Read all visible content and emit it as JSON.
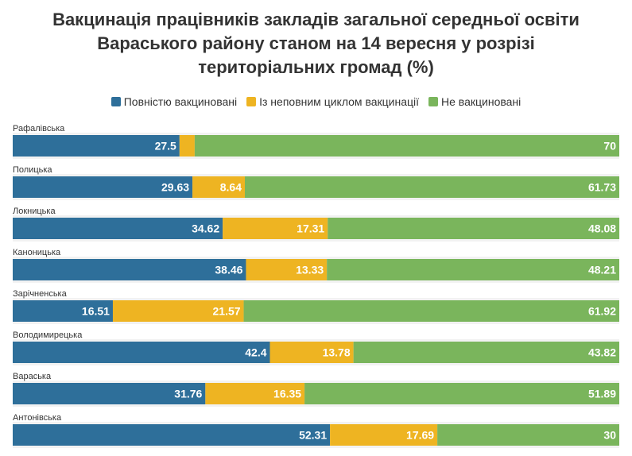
{
  "title_lines": [
    "Вакцинація працівників закладів загальної середньої освіти",
    "Вараського району станом на 14 вересня у розрізі",
    "територіальних громад (%)"
  ],
  "legend": [
    {
      "label": "Повністю вакциновані",
      "color": "#2e6f9a"
    },
    {
      "label": "Із неповним циклом вакцинації",
      "color": "#eeb422"
    },
    {
      "label": "Не вакциновані",
      "color": "#7ab55c"
    }
  ],
  "chart_data": {
    "type": "bar",
    "stacked": true,
    "orientation": "horizontal",
    "categories": [
      "Рафалівська",
      "Полицька",
      "Локницька",
      "Каноницька",
      "Зарічненська",
      "Володимирецька",
      "Вараська",
      "Антонівська"
    ],
    "series": [
      {
        "name": "Повністю вакциновані",
        "color": "#2e6f9a",
        "values": [
          27.5,
          29.63,
          34.62,
          38.46,
          16.51,
          42.4,
          31.76,
          52.31
        ]
      },
      {
        "name": "Із неповним циклом вакцинації",
        "color": "#eeb422",
        "values": [
          2.5,
          8.64,
          17.31,
          13.33,
          21.57,
          13.78,
          16.35,
          17.69
        ]
      },
      {
        "name": "Не вакциновані",
        "color": "#7ab55c",
        "values": [
          70,
          61.73,
          48.08,
          48.21,
          61.92,
          43.82,
          51.89,
          30
        ]
      }
    ],
    "labels": [
      [
        "27.5",
        "",
        "70"
      ],
      [
        "29.63",
        "8.64",
        "61.73"
      ],
      [
        "34.62",
        "17.31",
        "48.08"
      ],
      [
        "38.46",
        "13.33",
        "48.21"
      ],
      [
        "16.51",
        "21.57",
        "61.92"
      ],
      [
        "42.4",
        "13.78",
        "43.82"
      ],
      [
        "31.76",
        "16.35",
        "51.89"
      ],
      [
        "52.31",
        "17.69",
        "30"
      ]
    ],
    "xlim": [
      0,
      100
    ]
  }
}
